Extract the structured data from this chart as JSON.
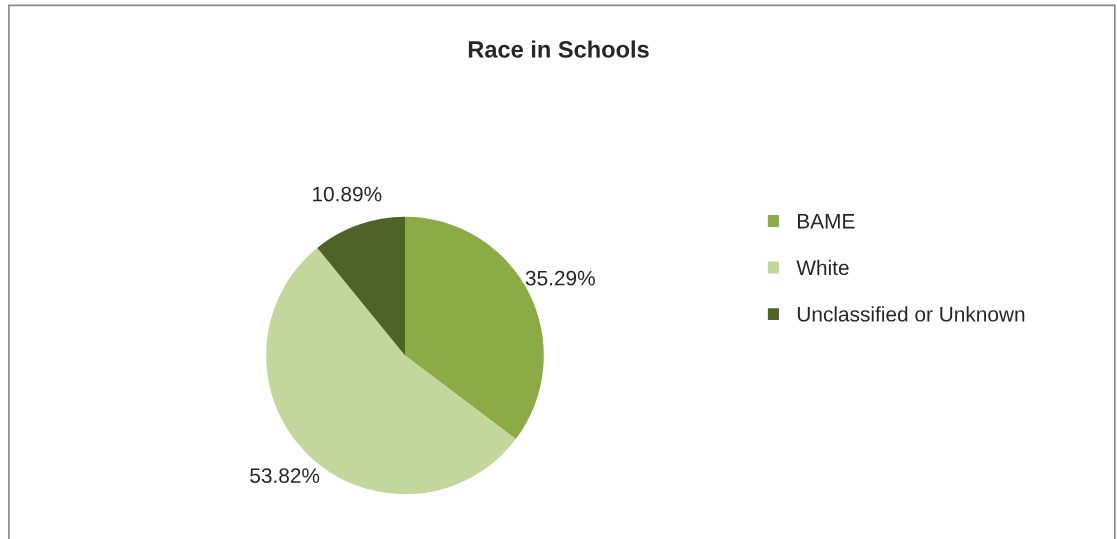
{
  "chart_data": {
    "type": "pie",
    "title": "Race in Schools",
    "categories": [
      "BAME",
      "White",
      "Unclassified or Unknown"
    ],
    "values": [
      35.29,
      53.82,
      10.89
    ],
    "colors": [
      "#8aab46",
      "#c3d69b",
      "#4f6228"
    ],
    "value_labels": [
      "35.29%",
      "53.82%",
      "10.89%"
    ],
    "legend": "right"
  }
}
